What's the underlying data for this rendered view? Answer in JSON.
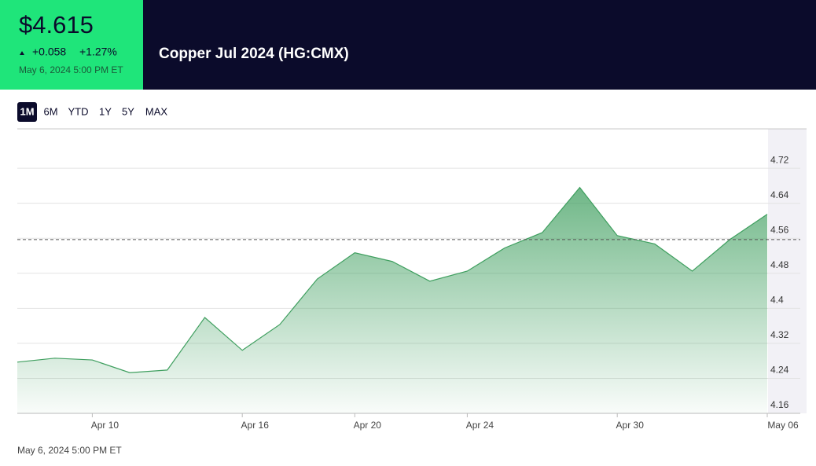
{
  "header": {
    "price": "$4.615",
    "change": "+0.058",
    "change_percent": "+1.27%",
    "timestamp": "May 6, 2024 5:00 PM ET",
    "title": "Copper Jul 2024 (HG:CMX)"
  },
  "ranges": [
    "1M",
    "6M",
    "YTD",
    "1Y",
    "5Y",
    "MAX"
  ],
  "active_range": 0,
  "chart_data": {
    "type": "area",
    "categories": [
      null,
      null,
      "Apr 10",
      null,
      null,
      null,
      "Apr 16",
      null,
      null,
      "Apr 20",
      null,
      null,
      "Apr 24",
      null,
      null,
      null,
      "Apr 30",
      null,
      null,
      null,
      "May 06"
    ],
    "values": [
      4.277,
      4.286,
      4.282,
      4.253,
      4.259,
      4.379,
      4.304,
      4.363,
      4.467,
      4.527,
      4.507,
      4.462,
      4.485,
      4.538,
      4.573,
      4.676,
      4.566,
      4.547,
      4.485,
      4.557,
      4.615
    ],
    "color": "#3f9f5f",
    "reference_line": 4.557,
    "ylim": [
      4.16,
      4.81
    ],
    "yticks": [
      4.16,
      4.24,
      4.32,
      4.4,
      4.48,
      4.56,
      4.64,
      4.72
    ],
    "grid": true
  },
  "footer": {
    "timestamp": "May 6, 2024 5:00 PM ET"
  }
}
